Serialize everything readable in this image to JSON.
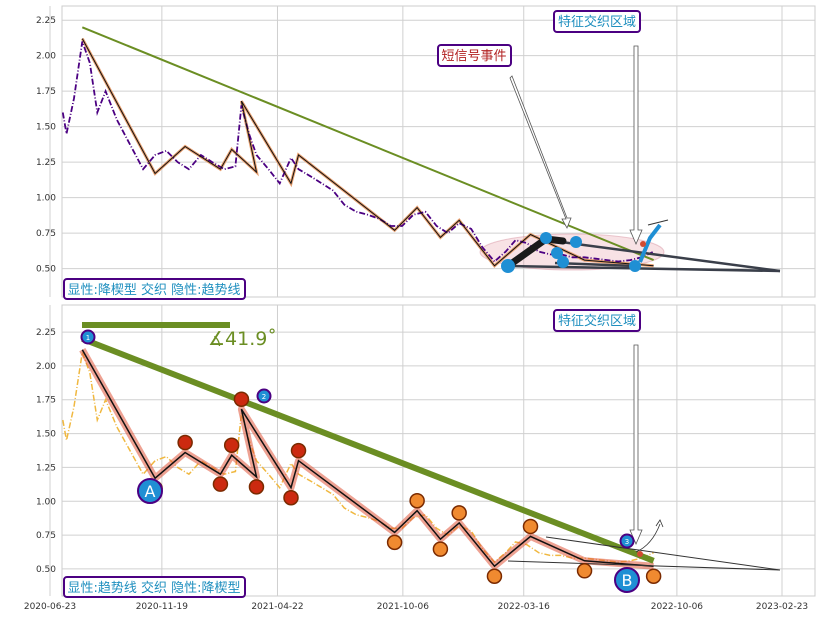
{
  "chart_data": [
    {
      "type": "line",
      "panel": "top",
      "ylim": [
        0.3,
        2.35
      ],
      "yticks": [
        "0.50",
        "0.75",
        "1.00",
        "1.25",
        "1.50",
        "1.75",
        "2.00",
        "2.25"
      ],
      "grid": true,
      "series": [
        {
          "role": "price",
          "color": "#4b0082",
          "style": "dash-dot",
          "x": [
            "2020-07-10",
            "2020-07-15",
            "2020-07-25",
            "2020-08-05",
            "2020-08-15",
            "2020-08-25",
            "2020-09-05",
            "2020-09-20",
            "2020-10-05",
            "2020-10-15",
            "2020-10-25",
            "2020-11-10",
            "2020-11-25",
            "2020-12-10",
            "2020-12-25",
            "2021-01-10",
            "2021-01-25",
            "2021-02-10",
            "2021-02-25",
            "2021-03-05",
            "2021-03-15",
            "2021-03-25",
            "2021-04-10",
            "2021-04-25",
            "2021-05-10",
            "2021-05-20",
            "2021-06-05",
            "2021-06-20",
            "2021-07-05",
            "2021-07-20",
            "2021-08-05",
            "2021-08-20",
            "2021-09-05",
            "2021-09-20",
            "2021-10-05",
            "2021-10-20",
            "2021-11-05",
            "2021-11-20",
            "2021-12-05",
            "2021-12-20",
            "2022-01-05",
            "2022-01-20",
            "2022-02-05",
            "2022-02-20",
            "2022-03-05",
            "2022-03-20",
            "2022-04-05",
            "2022-04-20",
            "2022-05-05",
            "2022-05-20",
            "2022-06-05",
            "2022-06-20",
            "2022-07-05",
            "2022-07-20",
            "2022-08-05",
            "2022-08-20",
            "2022-09-05"
          ],
          "values": [
            1.6,
            1.45,
            1.7,
            2.1,
            1.95,
            1.6,
            1.75,
            1.55,
            1.4,
            1.3,
            1.2,
            1.3,
            1.33,
            1.25,
            1.2,
            1.3,
            1.25,
            1.2,
            1.22,
            1.65,
            1.45,
            1.3,
            1.2,
            1.1,
            1.28,
            1.2,
            1.15,
            1.1,
            1.05,
            0.95,
            0.9,
            0.88,
            0.85,
            0.8,
            0.8,
            0.88,
            0.9,
            0.8,
            0.75,
            0.82,
            0.78,
            0.65,
            0.55,
            0.62,
            0.7,
            0.68,
            0.62,
            0.6,
            0.6,
            0.58,
            0.58,
            0.57,
            0.56,
            0.55,
            0.56,
            0.58,
            0.62
          ]
        },
        {
          "role": "zigzag",
          "color": "#111111",
          "x": [
            "2020-08-05",
            "2020-11-10",
            "2020-12-20",
            "2021-02-05",
            "2021-02-20",
            "2021-03-25",
            "2021-03-05",
            "2021-05-10",
            "2021-05-20",
            "2021-09-25",
            "2021-10-25",
            "2021-11-25",
            "2021-12-20",
            "2022-02-05",
            "2022-03-25",
            "2022-06-05",
            "2022-09-05"
          ],
          "values": [
            2.12,
            1.17,
            1.36,
            1.2,
            1.34,
            1.18,
            1.68,
            1.1,
            1.3,
            0.77,
            0.93,
            0.72,
            0.84,
            0.52,
            0.74,
            0.56,
            0.52
          ]
        },
        {
          "role": "descending-trend",
          "color": "#6b8e23",
          "x": [
            "2020-08-05",
            "2022-09-05"
          ],
          "values": [
            2.2,
            0.56
          ]
        }
      ],
      "annotations": [
        {
          "text": "特征交织区域",
          "box_color": "#4b0082",
          "text_color": "#1f8fbf"
        },
        {
          "text": "短信号事件",
          "box_color": "#4b0082",
          "text_color": "#b22222"
        },
        {
          "text": "显性:降楔型 交织 隐性:趋势线",
          "box_color": "#4b0082",
          "text_color": "#1f8fbf"
        }
      ]
    },
    {
      "type": "line",
      "panel": "bottom",
      "ylim": [
        0.3,
        2.45
      ],
      "yticks": [
        "0.50",
        "0.75",
        "1.00",
        "1.25",
        "1.50",
        "1.75",
        "2.00",
        "2.25"
      ],
      "xticks": [
        "2020-06-23",
        "2020-11-19",
        "2021-04-22",
        "2021-10-06",
        "2022-03-16",
        "2022-10-06",
        "2023-02-23"
      ],
      "grid": true,
      "series": [
        {
          "role": "price",
          "color": "#f0b840",
          "style": "dash-dot"
        },
        {
          "role": "zigzag",
          "color": "#111111"
        },
        {
          "role": "descending-trend",
          "color": "#6b8e23",
          "x": [
            "2020-08-05",
            "2022-09-05"
          ],
          "values": [
            2.2,
            0.56
          ]
        }
      ],
      "angle_label": "∡41.9˚",
      "pivot_points": [
        {
          "label": "1",
          "color": "#1f8fd4"
        },
        {
          "label": "2",
          "color": "#1f8fd4"
        },
        {
          "label": "3",
          "color": "#1f8fd4"
        }
      ],
      "marker_points": [
        {
          "label": "A",
          "color": "#1f8fd4"
        },
        {
          "label": "B",
          "color": "#1f8fd4"
        }
      ],
      "annotations": [
        {
          "text": "特征交织区域",
          "box_color": "#4b0082",
          "text_color": "#1f8fbf"
        },
        {
          "text": "显性:趋势线 交织 隐性:降楔型",
          "box_color": "#4b0082",
          "text_color": "#1f8fbf"
        }
      ]
    }
  ]
}
